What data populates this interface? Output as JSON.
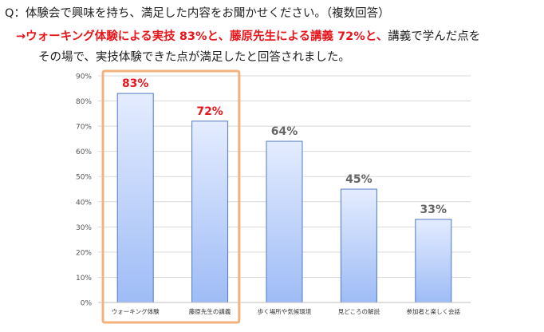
{
  "question": "Q：体験会で興味を持ち、満足した内容をお聞かせください。（複数回答）",
  "answer": {
    "arrow": "→",
    "hl1": "ウォーキング体験による実技 83%と、",
    "hl2": "藤原先生による講義 72%と、",
    "rest1": "講義で学んだ点を",
    "rest2": "その場で、実技体験できた点が満足したと回答されました。"
  },
  "chart_data": {
    "type": "bar",
    "categories": [
      "ウォーキング体験",
      "藤原先生の講義",
      "歩く場所や気候環境",
      "見どころの解説",
      "参加者と楽しく会話"
    ],
    "values": [
      83,
      72,
      64,
      45,
      33
    ],
    "value_labels": [
      "83%",
      "72%",
      "64%",
      "45%",
      "33%"
    ],
    "highlighted": [
      true,
      true,
      false,
      false,
      false
    ],
    "ylim": [
      0,
      90
    ],
    "yticks": [
      "0%",
      "10%",
      "20%",
      "30%",
      "40%",
      "50%",
      "60%",
      "70%",
      "80%",
      "90%"
    ],
    "grid": true,
    "colors": {
      "bar_top": "#e4ecff",
      "bar_bottom": "#9ebcf6",
      "bar_edge": "#4f79c4",
      "highlight_label": "#e8161b",
      "label": "#666666",
      "highlight_box": "#f3b27c"
    }
  }
}
